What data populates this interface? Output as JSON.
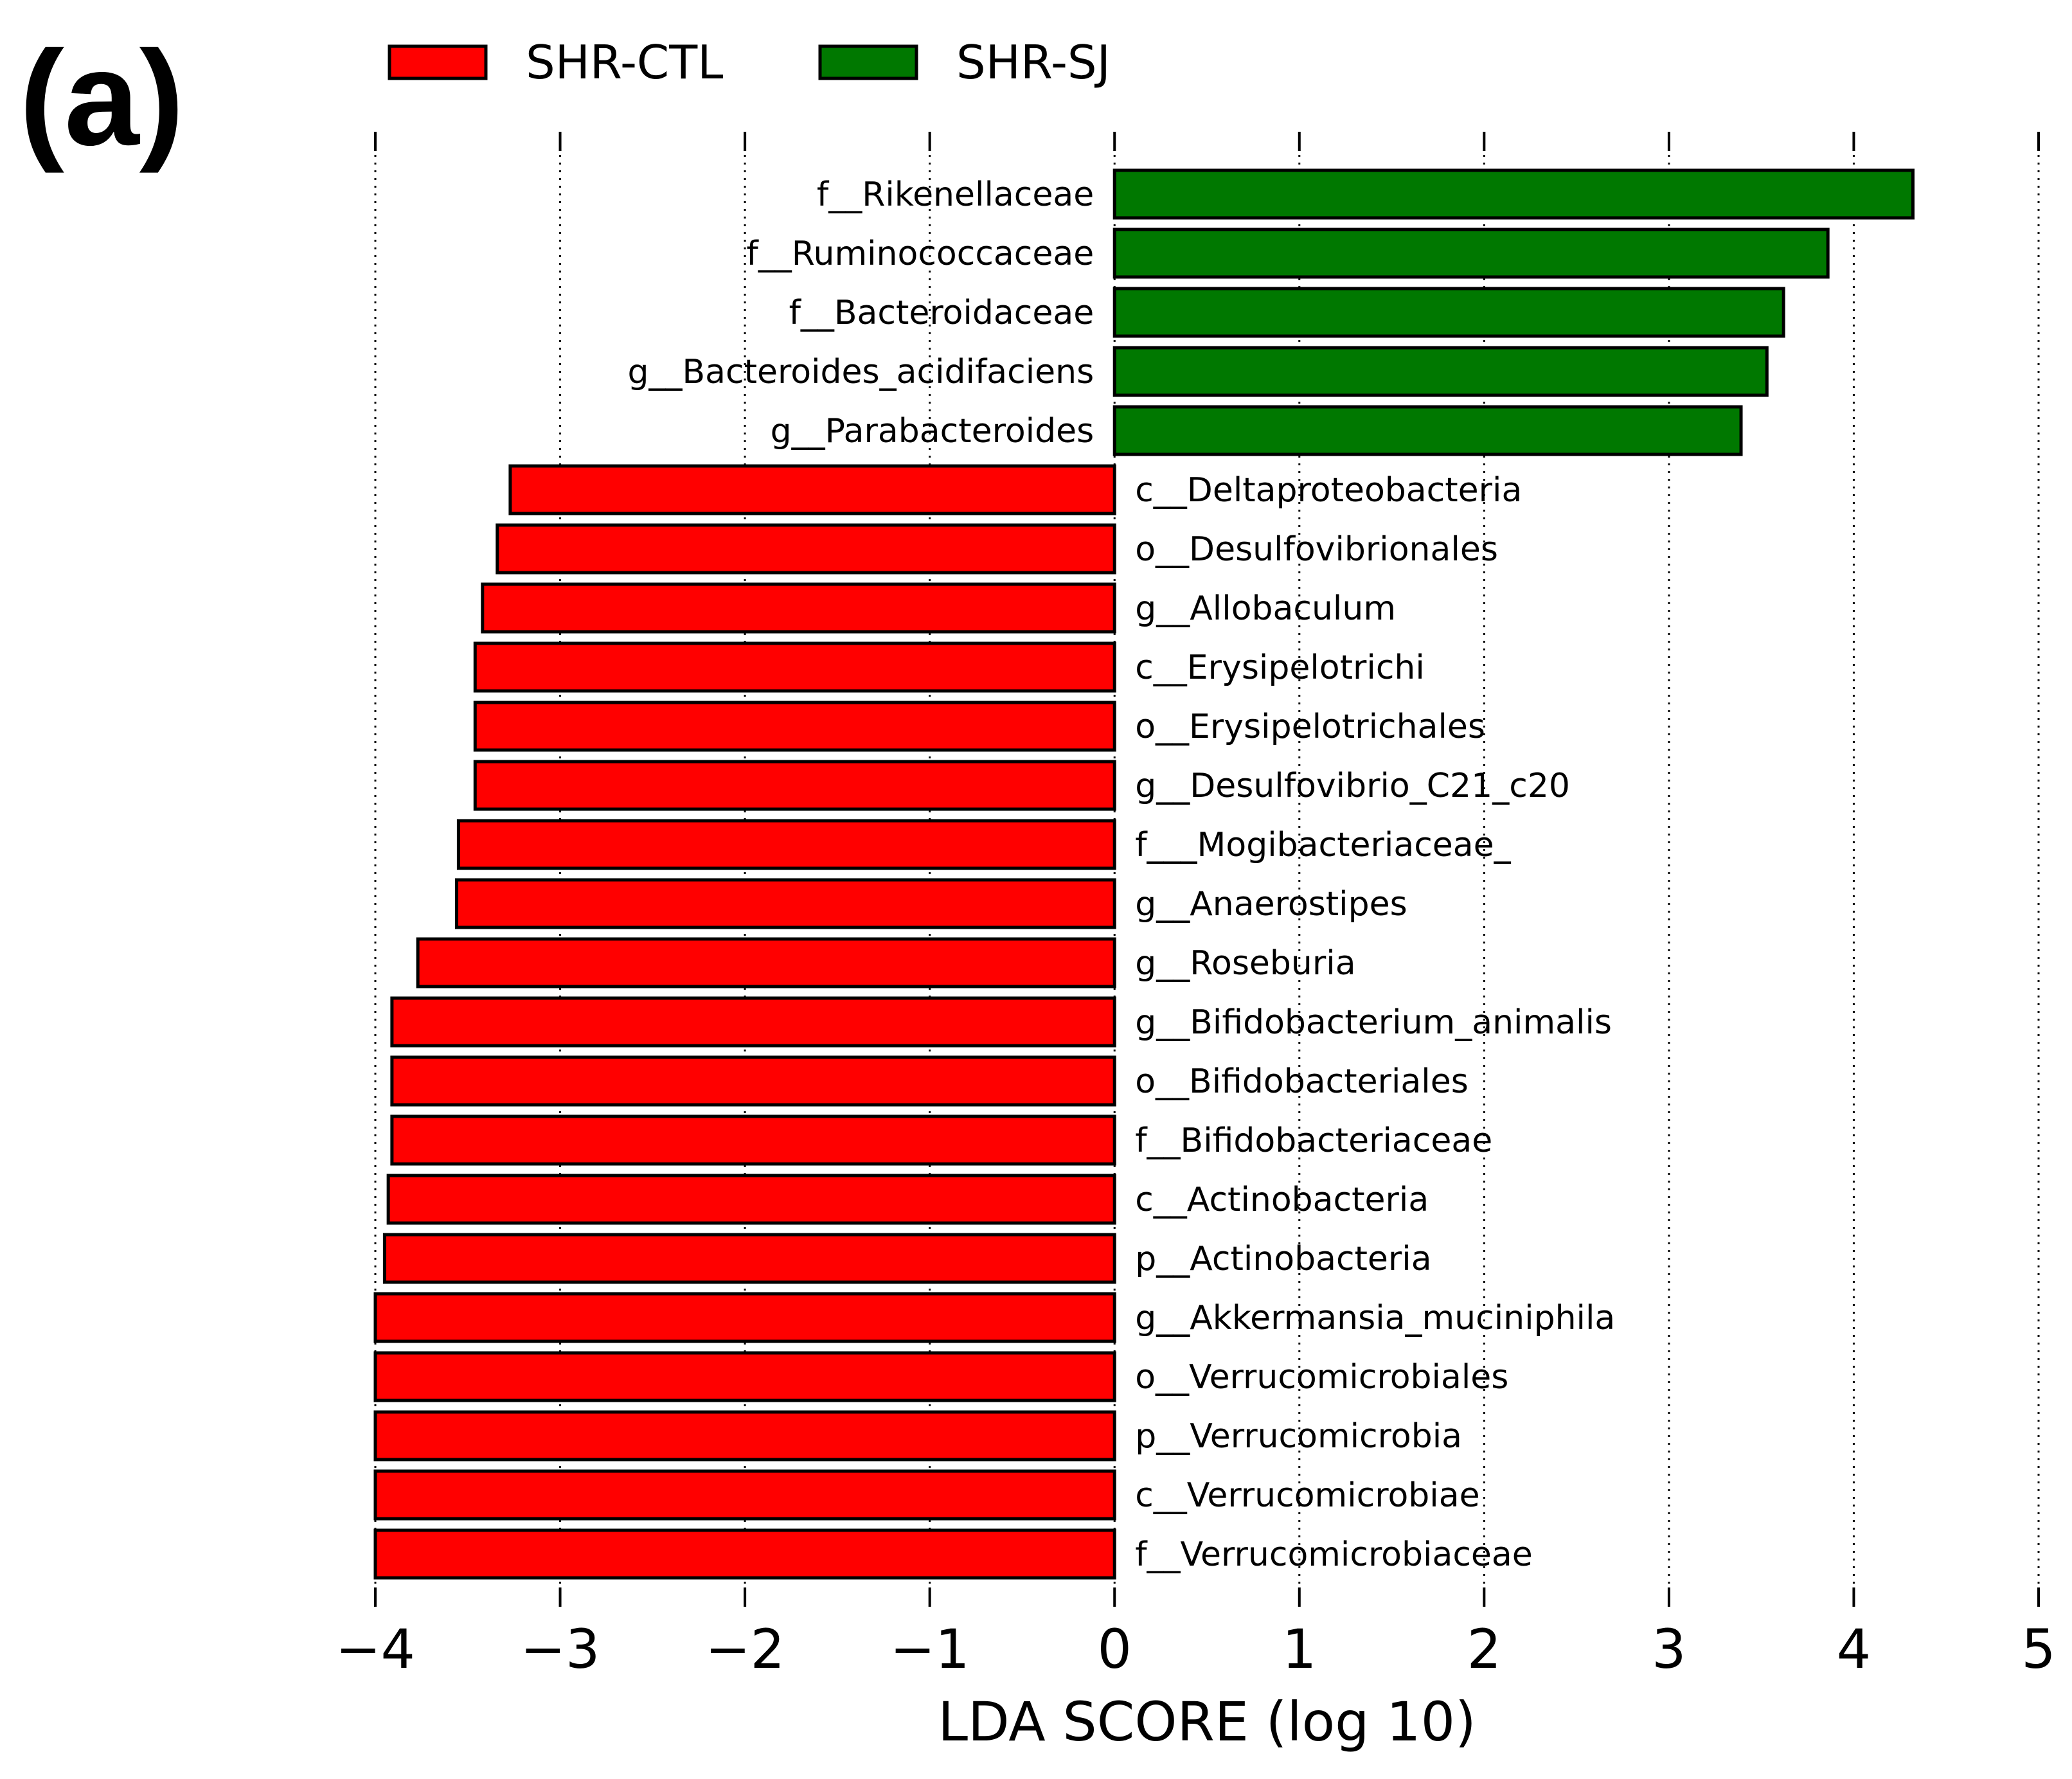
{
  "panel_label": "(a)",
  "colors": {
    "shr_ctl": "#ff0000",
    "shr_sj": "#007800",
    "text": "#000000"
  },
  "chart_data": {
    "type": "bar",
    "orientation": "horizontal",
    "title": "",
    "xlabel": "LDA SCORE (log 10)",
    "ylabel": "",
    "xlim": [
      -4,
      5
    ],
    "xticks": [
      -4,
      -3,
      -2,
      -1,
      0,
      1,
      2,
      3,
      4,
      5
    ],
    "xtick_labels": [
      "−4",
      "−3",
      "−2",
      "−1",
      "0",
      "1",
      "2",
      "3",
      "4",
      "5"
    ],
    "grid": "vertical dotted",
    "legend_position": "top",
    "legend": [
      {
        "name": "SHR-CTL",
        "color": "#ff0000"
      },
      {
        "name": "SHR-SJ",
        "color": "#007800"
      }
    ],
    "categories": [
      "f__Rikenellaceae",
      "f__Ruminococcaceae",
      "f__Bacteroidaceae",
      "g__Bacteroides_acidifaciens",
      "g__Parabacteroides",
      "c__Deltaproteobacteria",
      "o__Desulfovibrionales",
      "g__Allobaculum",
      "c__Erysipelotrichi",
      "o__Erysipelotrichales",
      "g__Desulfovibrio_C21_c20",
      "f___Mogibacteriaceae_",
      "g__Anaerostipes",
      "g__Roseburia",
      "g__Bifidobacterium_animalis",
      "o__Bifidobacteriales",
      "f__Bifidobacteriaceae",
      "c__Actinobacteria",
      "p__Actinobacteria",
      "g__Akkermansia_muciniphila",
      "o__Verrucomicrobiales",
      "p__Verrucomicrobia",
      "c__Verrucomicrobiae",
      "f__Verrucomicrobiaceae"
    ],
    "values": [
      4.32,
      3.86,
      3.62,
      3.53,
      3.39,
      -3.27,
      -3.34,
      -3.42,
      -3.46,
      -3.46,
      -3.46,
      -3.55,
      -3.56,
      -3.77,
      -3.91,
      -3.91,
      -3.91,
      -3.93,
      -3.95,
      -4.0,
      -4.0,
      -4.0,
      -4.0,
      -4.0
    ],
    "groups": [
      "SHR-SJ",
      "SHR-SJ",
      "SHR-SJ",
      "SHR-SJ",
      "SHR-SJ",
      "SHR-CTL",
      "SHR-CTL",
      "SHR-CTL",
      "SHR-CTL",
      "SHR-CTL",
      "SHR-CTL",
      "SHR-CTL",
      "SHR-CTL",
      "SHR-CTL",
      "SHR-CTL",
      "SHR-CTL",
      "SHR-CTL",
      "SHR-CTL",
      "SHR-CTL",
      "SHR-CTL",
      "SHR-CTL",
      "SHR-CTL",
      "SHR-CTL",
      "SHR-CTL"
    ]
  }
}
